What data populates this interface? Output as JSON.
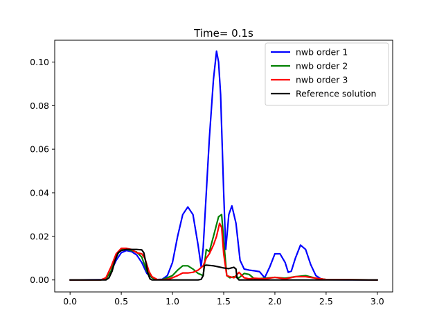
{
  "chart_data": {
    "type": "line",
    "title": "Time= 0.1s",
    "xlabel": "",
    "ylabel": "",
    "xlim": [
      -0.15,
      3.15
    ],
    "ylim": [
      -0.0055,
      0.11
    ],
    "xticks": [
      0.0,
      0.5,
      1.0,
      1.5,
      2.0,
      2.5,
      3.0
    ],
    "xtick_labels": [
      "0.0",
      "0.5",
      "1.0",
      "1.5",
      "2.0",
      "2.5",
      "3.0"
    ],
    "yticks": [
      0.0,
      0.02,
      0.04,
      0.06,
      0.08,
      0.1
    ],
    "ytick_labels": [
      "0.00",
      "0.02",
      "0.04",
      "0.06",
      "0.08",
      "0.10"
    ],
    "grid": false,
    "legend_position": "top-right",
    "series": [
      {
        "name": "nwb order 1",
        "color": "#0000ff",
        "x": [
          0.0,
          0.3,
          0.35,
          0.4,
          0.45,
          0.5,
          0.55,
          0.6,
          0.65,
          0.7,
          0.75,
          0.8,
          0.85,
          0.9,
          0.95,
          1.0,
          1.05,
          1.1,
          1.15,
          1.2,
          1.25,
          1.28,
          1.3,
          1.33,
          1.36,
          1.4,
          1.43,
          1.45,
          1.47,
          1.5,
          1.52,
          1.55,
          1.58,
          1.62,
          1.66,
          1.7,
          1.75,
          1.8,
          1.85,
          1.9,
          1.95,
          2.0,
          2.05,
          2.1,
          2.13,
          2.16,
          2.2,
          2.25,
          2.3,
          2.35,
          2.4,
          2.45,
          2.5,
          3.0
        ],
        "y": [
          0.0,
          0.0001,
          0.0008,
          0.004,
          0.009,
          0.0125,
          0.0135,
          0.013,
          0.0115,
          0.008,
          0.003,
          0.001,
          0.0002,
          0.0003,
          0.002,
          0.008,
          0.02,
          0.03,
          0.0335,
          0.03,
          0.016,
          0.006,
          0.015,
          0.04,
          0.065,
          0.092,
          0.105,
          0.1,
          0.085,
          0.04,
          0.014,
          0.03,
          0.034,
          0.026,
          0.009,
          0.005,
          0.0045,
          0.0042,
          0.0038,
          0.001,
          0.006,
          0.012,
          0.012,
          0.008,
          0.0035,
          0.004,
          0.01,
          0.016,
          0.014,
          0.007,
          0.002,
          0.0005,
          0.0001,
          0.0
        ]
      },
      {
        "name": "nwb order 2",
        "color": "#008000",
        "x": [
          0.0,
          0.3,
          0.35,
          0.4,
          0.45,
          0.5,
          0.55,
          0.6,
          0.65,
          0.7,
          0.75,
          0.8,
          0.85,
          0.9,
          0.95,
          1.0,
          1.05,
          1.1,
          1.15,
          1.2,
          1.25,
          1.3,
          1.33,
          1.36,
          1.4,
          1.45,
          1.48,
          1.5,
          1.53,
          1.56,
          1.6,
          1.65,
          1.7,
          1.75,
          1.8,
          1.9,
          2.0,
          2.1,
          2.2,
          2.3,
          2.4,
          2.5,
          3.0
        ],
        "y": [
          0.0,
          0.0,
          0.0005,
          0.004,
          0.011,
          0.014,
          0.014,
          0.0135,
          0.0128,
          0.0105,
          0.004,
          0.001,
          0.0002,
          0.0002,
          0.001,
          0.002,
          0.0045,
          0.0065,
          0.0065,
          0.005,
          0.003,
          0.002,
          0.014,
          0.013,
          0.02,
          0.029,
          0.03,
          0.018,
          0.002,
          0.001,
          0.0015,
          0.001,
          0.003,
          0.0025,
          0.0005,
          0.0008,
          0.0012,
          0.0008,
          0.0015,
          0.002,
          0.0008,
          0.0002,
          0.0
        ]
      },
      {
        "name": "nwb order 3",
        "color": "#ff0000",
        "x": [
          0.0,
          0.3,
          0.35,
          0.4,
          0.45,
          0.5,
          0.55,
          0.6,
          0.65,
          0.7,
          0.73,
          0.77,
          0.8,
          0.85,
          0.9,
          0.95,
          1.0,
          1.05,
          1.1,
          1.15,
          1.2,
          1.25,
          1.3,
          1.33,
          1.36,
          1.4,
          1.43,
          1.46,
          1.48,
          1.5,
          1.53,
          1.56,
          1.6,
          1.65,
          1.7,
          1.75,
          1.8,
          1.9,
          2.0,
          2.1,
          2.2,
          2.3,
          2.4,
          2.5,
          3.0
        ],
        "y": [
          0.0,
          0.0,
          0.001,
          0.006,
          0.012,
          0.0145,
          0.0145,
          0.014,
          0.0125,
          0.012,
          0.01,
          0.004,
          0.0015,
          0.0002,
          0.0001,
          0.0003,
          0.001,
          0.002,
          0.0032,
          0.0032,
          0.0035,
          0.0045,
          0.0065,
          0.01,
          0.012,
          0.016,
          0.02,
          0.026,
          0.024,
          0.012,
          0.002,
          0.0015,
          0.001,
          0.0035,
          0.001,
          0.0005,
          0.0008,
          0.0005,
          0.0012,
          0.0005,
          0.0015,
          0.0015,
          0.0008,
          0.0002,
          0.0
        ]
      },
      {
        "name": "Reference solution",
        "color": "#000000",
        "x": [
          0.0,
          0.35,
          0.38,
          0.41,
          0.44,
          0.47,
          0.5,
          0.55,
          0.6,
          0.65,
          0.7,
          0.72,
          0.74,
          0.76,
          0.78,
          0.8,
          1.0,
          1.25,
          1.28,
          1.3,
          1.31,
          1.33,
          1.4,
          1.45,
          1.5,
          1.55,
          1.6,
          1.62,
          1.63,
          1.65,
          3.0
        ],
        "y": [
          0.0,
          0.0,
          0.001,
          0.004,
          0.009,
          0.0125,
          0.0135,
          0.014,
          0.014,
          0.014,
          0.0138,
          0.0125,
          0.008,
          0.003,
          0.0005,
          0.0,
          0.0,
          0.0,
          0.0003,
          0.002,
          0.0065,
          0.0068,
          0.0065,
          0.006,
          0.0055,
          0.0052,
          0.0058,
          0.005,
          0.001,
          0.0,
          0.0
        ]
      }
    ]
  }
}
